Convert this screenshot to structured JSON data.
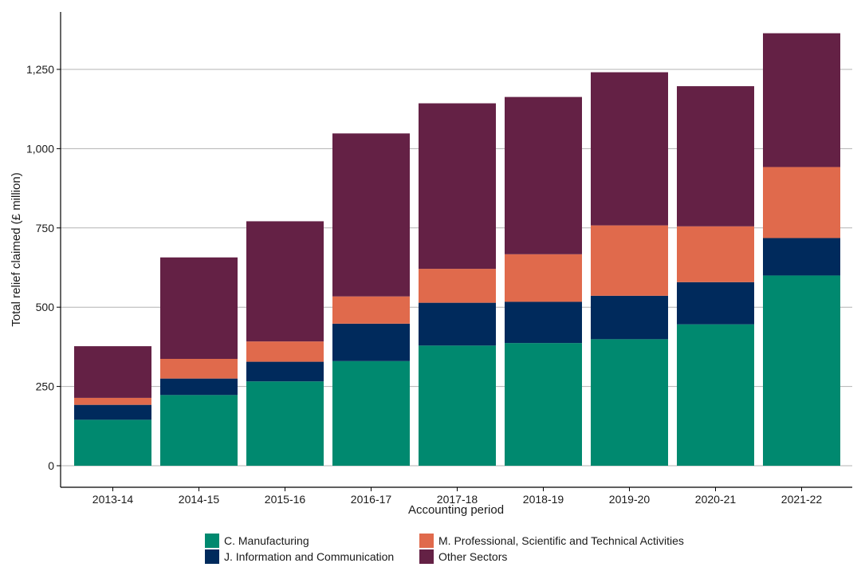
{
  "chart_data": {
    "type": "bar",
    "stacked": true,
    "title": "",
    "xlabel": "Accounting period",
    "ylabel": "Total relief claimed (£ million)",
    "ylim": [
      0,
      1400
    ],
    "yticks": [
      0,
      250,
      500,
      750,
      1000,
      1250
    ],
    "ytick_labels": [
      "0",
      "250",
      "500",
      "750",
      "1,000",
      "1,250"
    ],
    "grid": "horizontal",
    "legend_position": "bottom",
    "categories": [
      "2013-14",
      "2014-15",
      "2015-16",
      "2016-17",
      "2017-18",
      "2018-19",
      "2019-20",
      "2020-21",
      "2021-22"
    ],
    "series": [
      {
        "name": "C. Manufacturing",
        "color": "#00896f",
        "values": [
          145,
          223,
          266,
          330,
          379,
          387,
          399,
          446,
          600
        ]
      },
      {
        "name": "J. Information and Communication",
        "color": "#002a5c",
        "values": [
          47,
          52,
          62,
          118,
          135,
          130,
          137,
          133,
          118
        ]
      },
      {
        "name": "M. Professional, Scientific and Technical Activities",
        "color": "#e06a4c",
        "values": [
          22,
          62,
          64,
          86,
          107,
          150,
          222,
          176,
          224
        ]
      },
      {
        "name": "Other Sectors",
        "color": "#642145",
        "values": [
          163,
          320,
          379,
          514,
          522,
          496,
          483,
          442,
          422
        ]
      }
    ]
  }
}
